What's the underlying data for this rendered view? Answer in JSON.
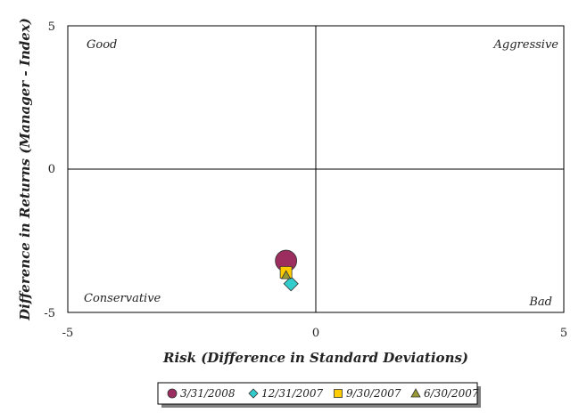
{
  "chart_data": {
    "type": "scatter",
    "title": "",
    "xlabel": "Risk (Difference in Standard Deviations)",
    "ylabel": "Difference in Returns (Manager - Index)",
    "xlim": [
      -5,
      5
    ],
    "ylim": [
      -5,
      5
    ],
    "x_ticks": [
      "-5",
      "0",
      "5"
    ],
    "y_ticks": [
      "5",
      "0",
      "-5"
    ],
    "grid": false,
    "legend_position": "bottom",
    "quadrant_labels": {
      "top_left": "Good",
      "top_right": "Aggressive",
      "bottom_left": "Conservative",
      "bottom_right": "Bad"
    },
    "series": [
      {
        "name": "3/31/2008",
        "marker": "circle",
        "color": "#9b2d5f",
        "points": [
          {
            "x": -0.6,
            "y": -3.2
          }
        ]
      },
      {
        "name": "12/31/2007",
        "marker": "diamond",
        "color": "#33cccc",
        "points": [
          {
            "x": -0.5,
            "y": -4.0
          }
        ]
      },
      {
        "name": "9/30/2007",
        "marker": "square",
        "color": "#ffcc00",
        "points": [
          {
            "x": -0.6,
            "y": -3.6
          }
        ]
      },
      {
        "name": "6/30/2007",
        "marker": "triangle",
        "color": "#999933",
        "points": [
          {
            "x": -0.6,
            "y": -3.7
          }
        ]
      }
    ]
  }
}
